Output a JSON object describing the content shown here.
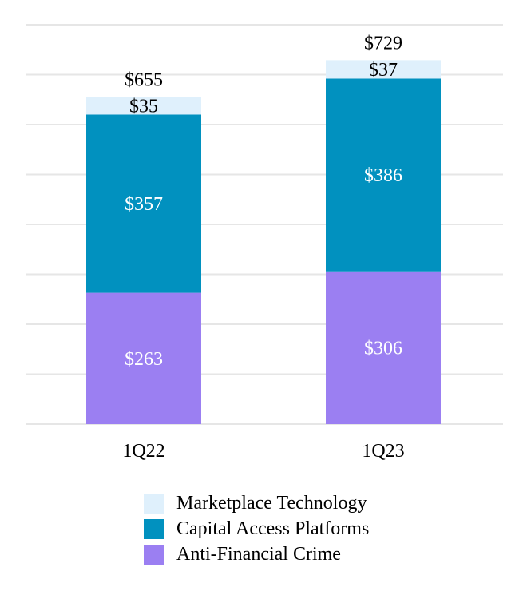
{
  "chart_data": {
    "type": "bar",
    "stacked": true,
    "categories": [
      "1Q22",
      "1Q23"
    ],
    "series": [
      {
        "name": "Anti-Financial Crime",
        "values": [
          263,
          306
        ],
        "labels": [
          "$263",
          "$306"
        ],
        "color": "#9b7ff2",
        "label_color": "#ffffff"
      },
      {
        "name": "Capital Access Platforms",
        "values": [
          357,
          386
        ],
        "labels": [
          "$357",
          "$386"
        ],
        "color": "#0191bf",
        "label_color": "#ffffff"
      },
      {
        "name": "Marketplace Technology",
        "values": [
          35,
          37
        ],
        "labels": [
          "$35",
          "$37"
        ],
        "color": "#dff0fc",
        "label_color": "#000000"
      }
    ],
    "totals": [
      655,
      729
    ],
    "total_labels": [
      "$655",
      "$729"
    ],
    "title": "",
    "xlabel": "",
    "ylabel": "",
    "ylim": [
      0,
      800
    ],
    "grid": true,
    "legend_position": "bottom-center"
  }
}
